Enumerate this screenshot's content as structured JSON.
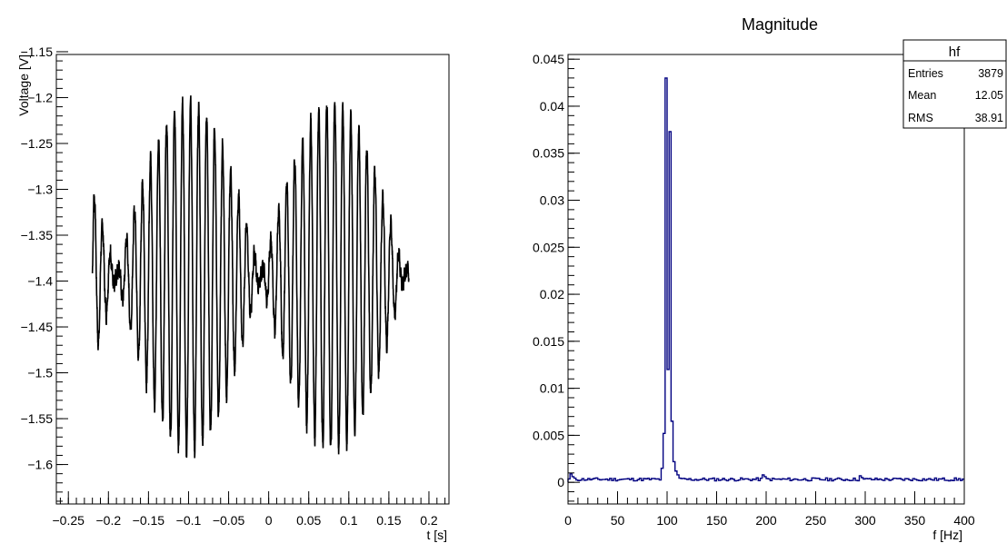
{
  "colors": {
    "left_series": "#000000",
    "right_series": "#000080",
    "frame": "#000000",
    "background": "#ffffff"
  },
  "chart_data": [
    {
      "type": "line",
      "title": "",
      "xlabel": "t [s]",
      "ylabel": "Voltage [V]",
      "xlim": [
        -0.265,
        0.225
      ],
      "ylim": [
        -1.643,
        -1.153
      ],
      "x_ticks": [
        -0.25,
        -0.2,
        -0.15,
        -0.1,
        -0.05,
        0,
        0.05,
        0.1,
        0.15,
        0.2
      ],
      "x_tick_labels": [
        "−0.25",
        "−0.2",
        "−0.15",
        "−0.1",
        "−0.05",
        "0",
        "0.05",
        "0.1",
        "0.15",
        "0.2"
      ],
      "y_ticks": [
        -1.6,
        -1.55,
        -1.5,
        -1.45,
        -1.4,
        -1.35,
        -1.3,
        -1.25,
        -1.2,
        -1.15
      ],
      "y_tick_labels": [
        "−1.6",
        "−1.55",
        "−1.5",
        "−1.45",
        "−1.4",
        "−1.35",
        "−1.3",
        "−1.25",
        "−1.2",
        "−1.15"
      ],
      "grid": false,
      "series": [
        {
          "x_start": -0.22,
          "x_end": 0.175,
          "dc_offset": -1.395,
          "carrier_hz": 100,
          "envelope_peak_amplitude": 0.19,
          "envelope_period_s": 0.18,
          "envelope_peaks_at_s": [
            -0.1,
            0.08
          ],
          "envelope_minima_at_s": [
            -0.19,
            -0.01,
            0.17
          ]
        }
      ]
    },
    {
      "type": "histogram",
      "title": "Magnitude",
      "xlabel": "f [Hz]",
      "ylabel": "",
      "xlim": [
        0,
        400
      ],
      "ylim": [
        -0.0023,
        0.0455
      ],
      "x_ticks": [
        0,
        50,
        100,
        150,
        200,
        250,
        300,
        350,
        400
      ],
      "x_tick_labels": [
        "0",
        "50",
        "100",
        "150",
        "200",
        "250",
        "300",
        "350",
        "400"
      ],
      "y_ticks": [
        0,
        0.005,
        0.01,
        0.015,
        0.02,
        0.025,
        0.03,
        0.035,
        0.04,
        0.045
      ],
      "y_tick_labels": [
        "0",
        "0.005",
        "0.01",
        "0.015",
        "0.02",
        "0.025",
        "0.03",
        "0.035",
        "0.04",
        "0.045"
      ],
      "grid": false,
      "bin_width_hz": 2,
      "baseline_magnitude": 0.0003,
      "peaks": [
        {
          "f": 94,
          "value": 0.0015
        },
        {
          "f": 96,
          "value": 0.0052
        },
        {
          "f": 98,
          "value": 0.043
        },
        {
          "f": 100,
          "value": 0.012
        },
        {
          "f": 102,
          "value": 0.0373
        },
        {
          "f": 104,
          "value": 0.0065
        },
        {
          "f": 106,
          "value": 0.0022
        },
        {
          "f": 108,
          "value": 0.0012
        },
        {
          "f": 110,
          "value": 0.0008
        }
      ],
      "small_bumps": [
        {
          "f": 2,
          "value": 0.0009
        },
        {
          "f": 4,
          "value": 0.0006
        },
        {
          "f": 196,
          "value": 0.0008
        },
        {
          "f": 198,
          "value": 0.0006
        },
        {
          "f": 294,
          "value": 0.0007
        },
        {
          "f": 296,
          "value": 0.0005
        }
      ],
      "legend": "top-right",
      "stats_box": {
        "name": "hf",
        "rows": [
          {
            "label": "Entries",
            "value": "3879"
          },
          {
            "label": "Mean",
            "value": "12.05"
          },
          {
            "label": "RMS",
            "value": "38.91"
          }
        ]
      }
    }
  ]
}
